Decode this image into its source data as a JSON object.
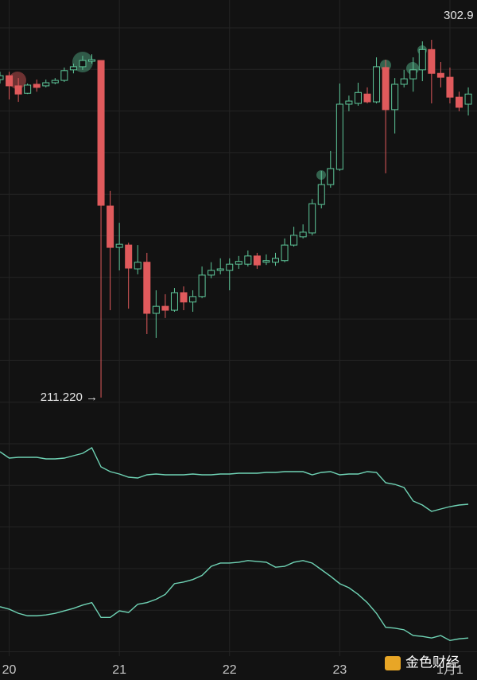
{
  "chart_data": [
    {
      "type": "candlestick",
      "categories": [
        null,
        "20",
        null,
        null,
        null,
        null,
        null,
        null,
        null,
        null,
        null,
        null,
        null,
        "21",
        null,
        null,
        null,
        null,
        null,
        null,
        null,
        null,
        null,
        null,
        null,
        "22",
        null,
        null,
        null,
        null,
        null,
        null,
        null,
        null,
        null,
        null,
        null,
        "23",
        null,
        null,
        null,
        null,
        null,
        null,
        null,
        null,
        null,
        null,
        null,
        "1月1",
        null,
        null
      ],
      "open": [
        292.7,
        293.7,
        291.1,
        289.2,
        291.5,
        291.1,
        291.9,
        292.5,
        295.2,
        296.0,
        297.4,
        297.6,
        260.3,
        249.7,
        250.3,
        244.2,
        245.9,
        232.8,
        234.6,
        233.6,
        238.1,
        235.7,
        237.1,
        242.6,
        243.8,
        243.8,
        245.4,
        245.4,
        247.5,
        245.9,
        245.9,
        246.3,
        250.3,
        252.4,
        253.4,
        260.7,
        265.8,
        269.7,
        286.4,
        286.6,
        289.0,
        287.0,
        295.8,
        285.0,
        291.5,
        292.9,
        295.2,
        300.4,
        294.3,
        293.3,
        288.2,
        286.4
      ],
      "close": [
        293.7,
        291.1,
        289.0,
        291.3,
        290.7,
        291.9,
        292.5,
        295.0,
        296.0,
        297.6,
        297.8,
        260.5,
        249.7,
        250.5,
        244.4,
        245.9,
        232.8,
        234.6,
        233.6,
        238.1,
        235.7,
        237.1,
        242.6,
        243.8,
        244.2,
        245.4,
        246.1,
        247.5,
        245.2,
        246.3,
        246.9,
        250.3,
        252.8,
        253.6,
        260.9,
        265.8,
        269.9,
        286.4,
        287.2,
        289.4,
        287.0,
        296.0,
        285.0,
        291.5,
        292.9,
        295.2,
        300.4,
        294.3,
        293.3,
        288.2,
        285.6,
        289.0
      ],
      "high": [
        294.7,
        294.7,
        293.1,
        291.7,
        292.7,
        292.7,
        293.1,
        295.8,
        296.8,
        298.8,
        299.2,
        297.6,
        264.2,
        256.0,
        250.9,
        250.3,
        248.3,
        238.7,
        237.7,
        239.3,
        239.7,
        238.7,
        244.8,
        245.9,
        246.9,
        246.9,
        247.5,
        248.9,
        248.3,
        247.9,
        248.3,
        252.0,
        255.0,
        255.6,
        262.1,
        269.3,
        274.4,
        291.7,
        288.6,
        291.9,
        290.7,
        298.4,
        297.8,
        293.1,
        295.2,
        298.4,
        302.5,
        302.9,
        297.2,
        295.8,
        289.6,
        290.7
      ],
      "low": [
        291.7,
        287.6,
        287.0,
        289.0,
        289.6,
        290.7,
        291.5,
        292.1,
        294.3,
        295.2,
        296.8,
        211.22,
        233.6,
        243.8,
        234.0,
        242.8,
        227.5,
        226.5,
        231.6,
        233.2,
        233.6,
        233.2,
        236.7,
        241.8,
        242.8,
        238.7,
        244.2,
        244.8,
        244.2,
        245.2,
        245.0,
        245.9,
        249.9,
        252.0,
        252.8,
        259.7,
        265.0,
        269.3,
        284.6,
        286.0,
        286.6,
        286.6,
        268.7,
        278.9,
        290.7,
        289.6,
        292.3,
        286.6,
        290.7,
        286.6,
        284.6,
        283.5
      ],
      "colors": {
        "up": "#5ec79a",
        "down": "#e05a5c"
      },
      "ylim": [
        201,
        313.1
      ],
      "annotations": {
        "high": "302.9",
        "low": "211.220 →"
      }
    },
    {
      "type": "line",
      "ylim": [
        0,
        110
      ],
      "series": [
        {
          "color": "#6fd3b5",
          "values": [
            97,
            89,
            90,
            90,
            90,
            88,
            88,
            89,
            92,
            95,
            102,
            78,
            72,
            69,
            65,
            64,
            68,
            69,
            68,
            68,
            68,
            69,
            68,
            68,
            69,
            69,
            70,
            70,
            70,
            71,
            71,
            72,
            72,
            72,
            68,
            71,
            72,
            68,
            69,
            69,
            72,
            71,
            58,
            56,
            52,
            35,
            30,
            22,
            25,
            28,
            30,
            31
          ]
        }
      ]
    },
    {
      "type": "line",
      "ylim": [
        0,
        140
      ],
      "series": [
        {
          "color": "#6fd3b5",
          "values": [
            60,
            57,
            52,
            49,
            49,
            50,
            52,
            55,
            58,
            62,
            65,
            47,
            47,
            55,
            53,
            63,
            65,
            69,
            75,
            88,
            90,
            93,
            98,
            109,
            113,
            113,
            114,
            116,
            115,
            114,
            108,
            109,
            114,
            116,
            113,
            105,
            97,
            88,
            83,
            75,
            65,
            52,
            35,
            34,
            32,
            25,
            24,
            22,
            25,
            19,
            21,
            22
          ]
        }
      ]
    }
  ],
  "watermark": "金色财经"
}
